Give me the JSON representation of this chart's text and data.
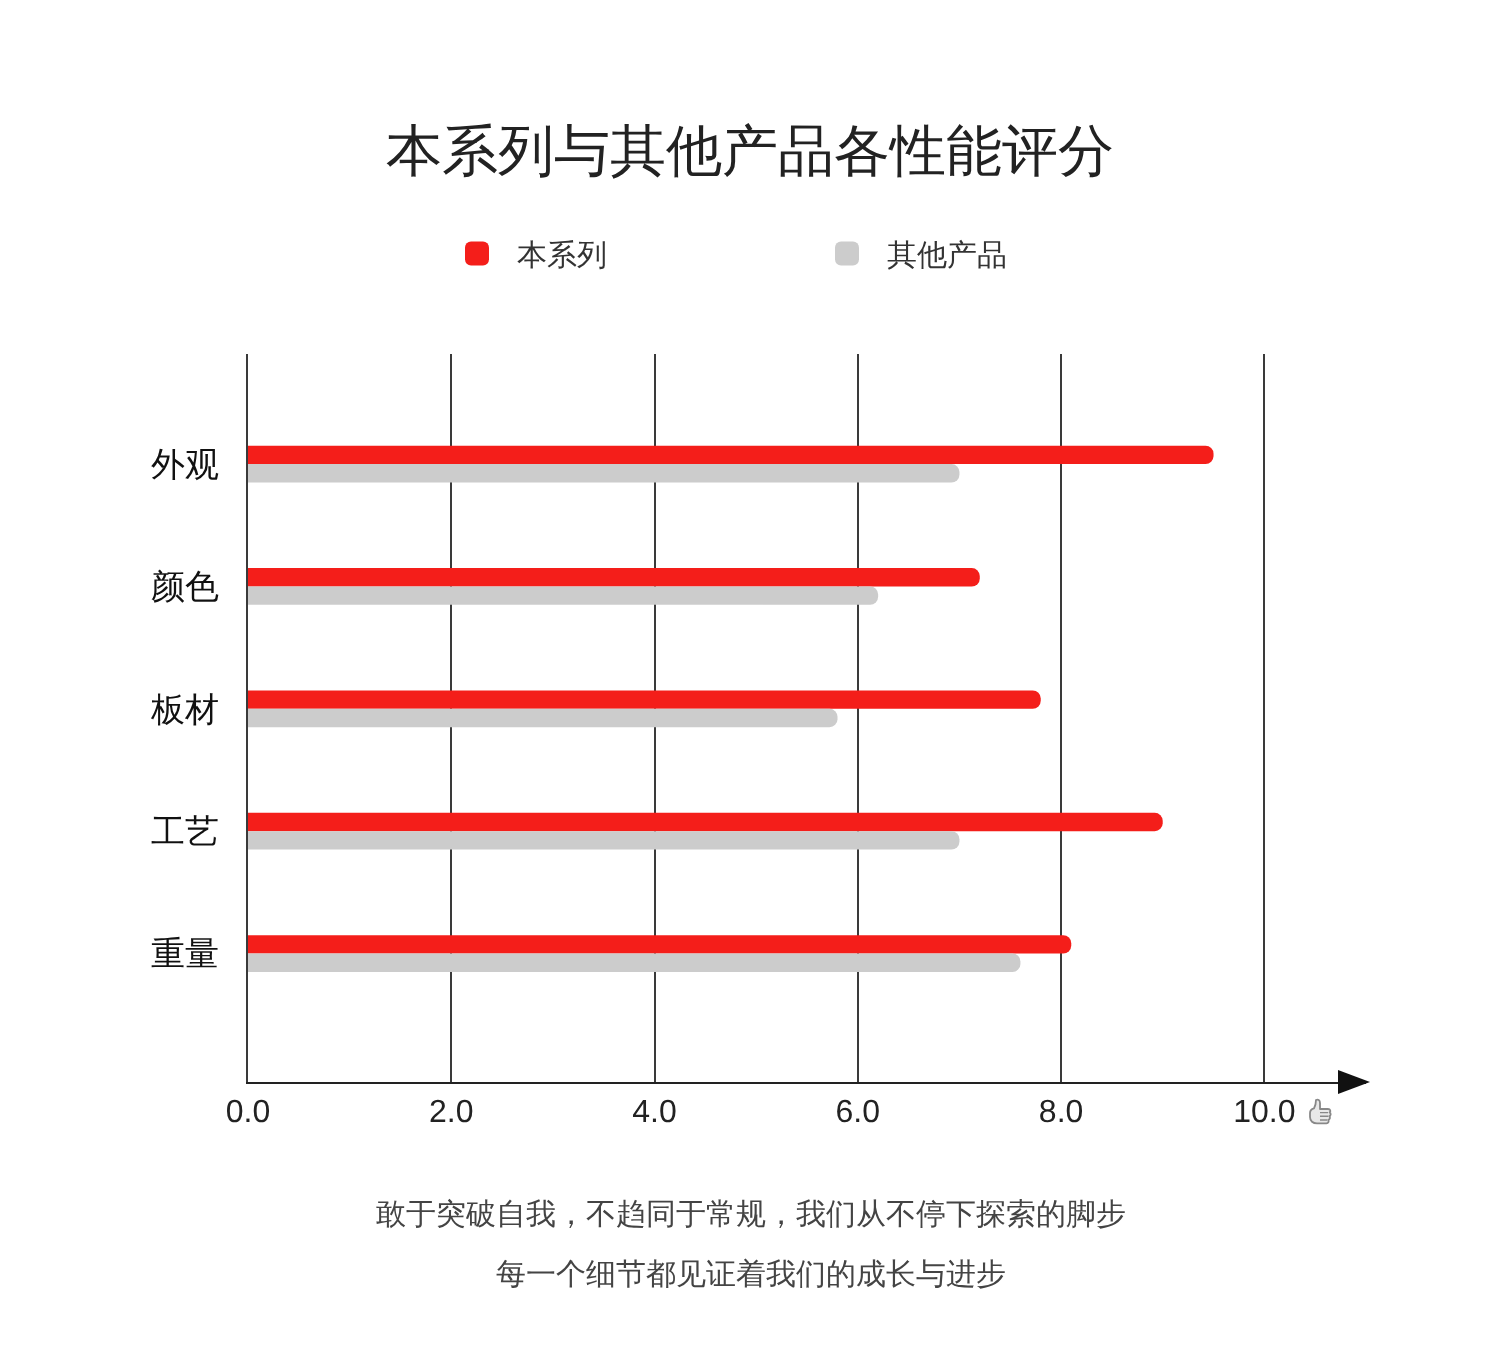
{
  "chart_data": {
    "type": "bar",
    "orientation": "horizontal",
    "title": "本系列与其他产品各性能评分",
    "categories": [
      "外观",
      "颜色",
      "板材",
      "工艺",
      "重量"
    ],
    "series": [
      {
        "name": "本系列",
        "color": "#f41e1a",
        "values": [
          9.5,
          7.2,
          7.8,
          9.0,
          8.1
        ]
      },
      {
        "name": "其他产品",
        "color": "#cccccc",
        "values": [
          7.0,
          6.2,
          5.8,
          7.0,
          7.6
        ]
      }
    ],
    "xlim": [
      0,
      11
    ],
    "xticks": [
      {
        "value": 0,
        "label": "0.0"
      },
      {
        "value": 2,
        "label": "2.0"
      },
      {
        "value": 4,
        "label": "4.0"
      },
      {
        "value": 6,
        "label": "6.0"
      },
      {
        "value": 8,
        "label": "8.0"
      },
      {
        "value": 10,
        "label": "10.0"
      }
    ],
    "grid": "x",
    "legend": "top",
    "annotations": [
      "敢于突破自我，不趋同于常规，我们从不停下探索的脚步",
      "每一个细节都见证着我们的成长与进步"
    ]
  }
}
